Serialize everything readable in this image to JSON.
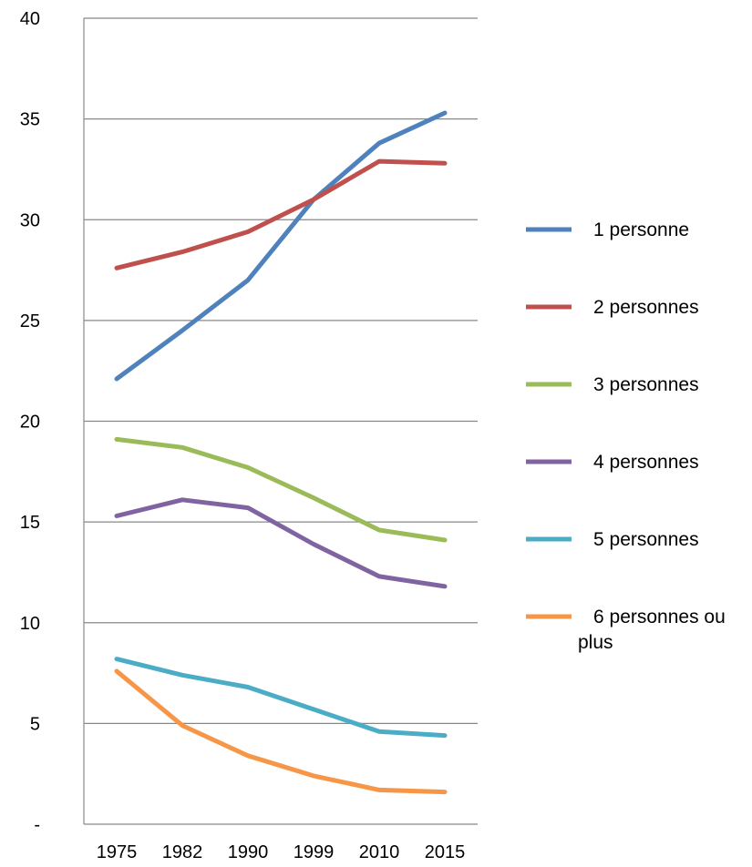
{
  "chart_data": {
    "type": "line",
    "title": "",
    "xlabel": "",
    "ylabel": "",
    "categories": [
      "1975",
      "1982",
      "1990",
      "1999",
      "2010",
      "2015"
    ],
    "ylim": [
      0,
      40
    ],
    "y_ticks": [
      0,
      5,
      10,
      15,
      20,
      25,
      30,
      35,
      40
    ],
    "y_tick_labels": [
      "-",
      "5",
      "10",
      "15",
      "20",
      "25",
      "30",
      "35",
      "40"
    ],
    "grid": "horizontal",
    "legend_position": "right",
    "series": [
      {
        "name": "1  personne",
        "color": "#4F81BD",
        "values": [
          22.1,
          24.5,
          27.0,
          31.0,
          33.8,
          35.3
        ]
      },
      {
        "name": "2  personnes",
        "color": "#C0504D",
        "values": [
          27.6,
          28.4,
          29.4,
          31.0,
          32.9,
          32.8
        ]
      },
      {
        "name": "3  personnes",
        "color": "#9BBB59",
        "values": [
          19.1,
          18.7,
          17.7,
          16.2,
          14.6,
          14.1
        ]
      },
      {
        "name": "4  personnes",
        "color": "#8064A2",
        "values": [
          15.3,
          16.1,
          15.7,
          13.9,
          12.3,
          11.8
        ]
      },
      {
        "name": "5  personnes",
        "color": "#4BACC6",
        "values": [
          8.2,
          7.4,
          6.8,
          5.7,
          4.6,
          4.4
        ]
      },
      {
        "name": "6  personnes ou plus",
        "color": "#F79646",
        "values": [
          7.6,
          4.9,
          3.4,
          2.4,
          1.7,
          1.6
        ]
      }
    ]
  }
}
